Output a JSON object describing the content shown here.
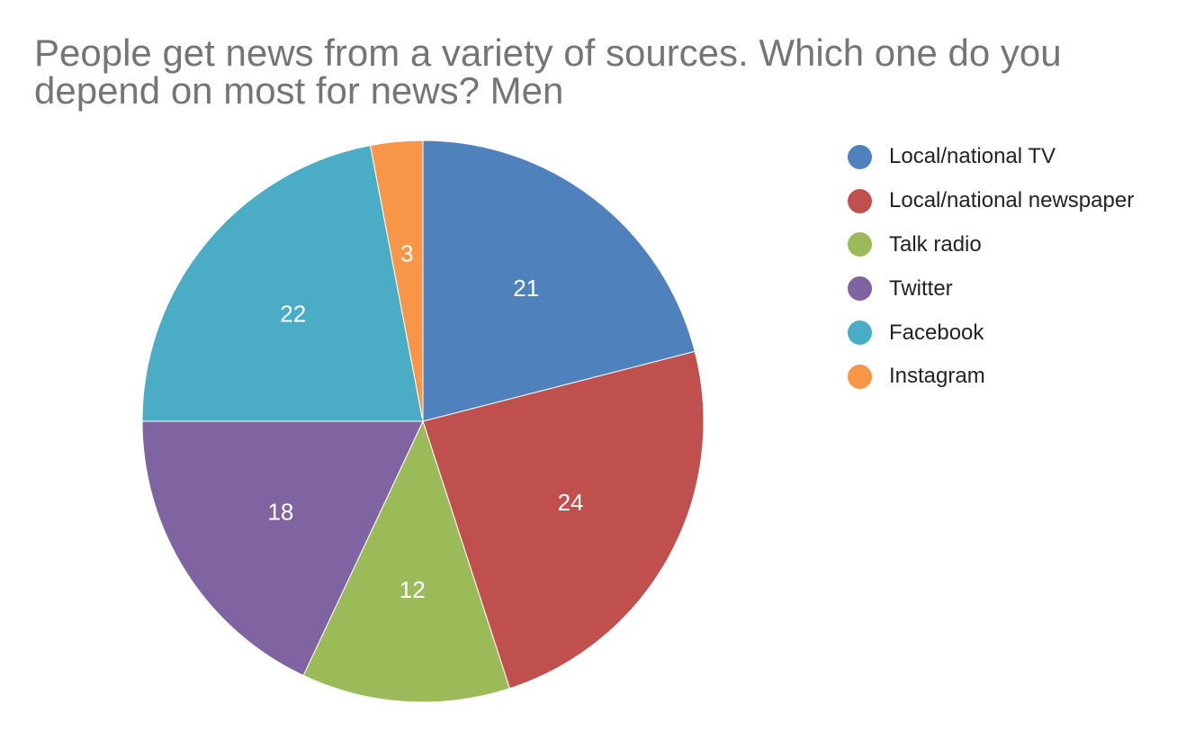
{
  "chart_data": {
    "type": "pie",
    "title_lines": [
      "People get news from a variety of sources. Which one do you",
      "depend on most for news? Men"
    ],
    "categories": [
      "Local/national TV",
      "Local/national newspaper",
      "Talk radio",
      "Twitter",
      "Facebook",
      "Instagram"
    ],
    "values": [
      21,
      24,
      12,
      18,
      22,
      3
    ],
    "colors": [
      "#4f81bd",
      "#c0504d",
      "#9bbb59",
      "#8064a2",
      "#4bacc6",
      "#f79646"
    ],
    "data_labels": [
      "21",
      "24",
      "12",
      "18",
      "22",
      "3"
    ],
    "legend_position": "right",
    "start_angle": "12 o'clock",
    "direction": "clockwise"
  }
}
